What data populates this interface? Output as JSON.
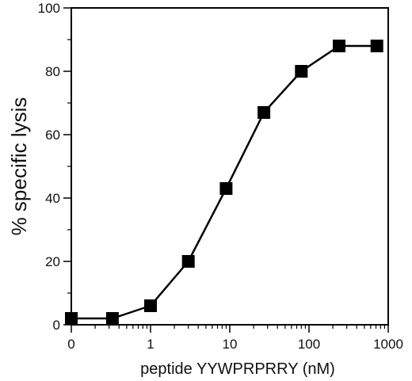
{
  "chart_data": {
    "type": "line",
    "title": "",
    "xlabel": "peptide  YYWPRPRRY (nM)",
    "ylabel": "% specific lysis",
    "x_scale": "log",
    "x_ticks": [
      {
        "value": 0.1,
        "label": "0"
      },
      {
        "value": 1,
        "label": "1"
      },
      {
        "value": 10,
        "label": "10"
      },
      {
        "value": 100,
        "label": "100"
      },
      {
        "value": 1000,
        "label": "1000"
      }
    ],
    "y_ticks": [
      0,
      20,
      40,
      60,
      80,
      100
    ],
    "xlim": [
      0.1,
      1000
    ],
    "ylim": [
      0,
      100
    ],
    "grid": false,
    "legend": "none",
    "marker": "square",
    "color": "#000000",
    "series": [
      {
        "x": [
          0.1,
          0.33,
          1.0,
          3.0,
          9.0,
          27,
          80,
          240,
          720
        ],
        "y": [
          2,
          2,
          6,
          20,
          43,
          67,
          80,
          88,
          88
        ]
      }
    ]
  }
}
